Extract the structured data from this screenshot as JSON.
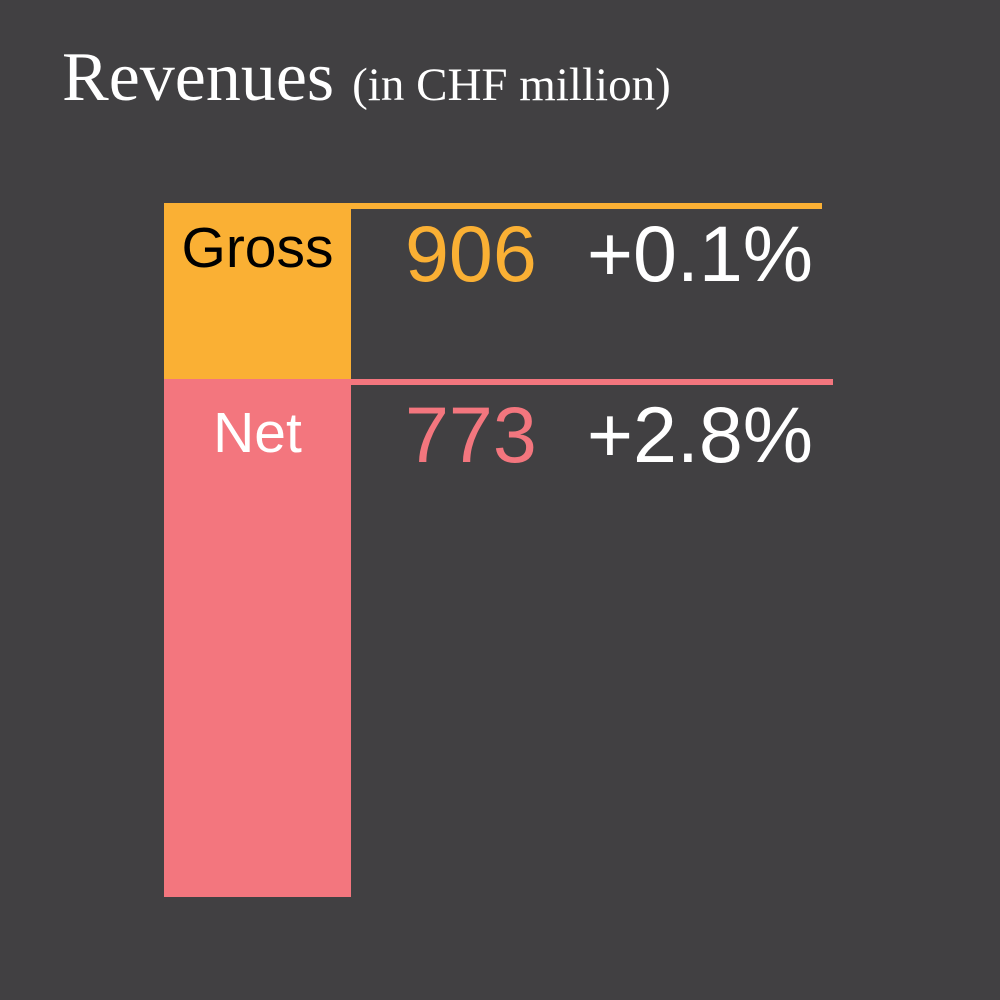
{
  "title": {
    "main": "Revenues",
    "unit": "(in CHF million)"
  },
  "rows": [
    {
      "label": "Gross",
      "value": "906",
      "change": "+0.1%"
    },
    {
      "label": "Net",
      "value": "773",
      "change": "+2.8%"
    }
  ],
  "colors": {
    "background": "#414042",
    "gross": "#FAB034",
    "net": "#F3767E",
    "text_light": "#FFFFFF",
    "text_dark": "#000000"
  },
  "chart_data": {
    "type": "bar",
    "title": "Revenues",
    "unit_label": "(in CHF million)",
    "categories": [
      "Gross",
      "Net"
    ],
    "values": [
      906,
      773
    ],
    "change_labels": [
      "+0.1%",
      "+2.8%"
    ],
    "bar_colors": [
      "#FAB034",
      "#F3767E"
    ],
    "legend_position": "none",
    "axes_visible": false,
    "annotations": [
      "Gross 906 +0.1%",
      "Net 773 +2.8%"
    ]
  }
}
